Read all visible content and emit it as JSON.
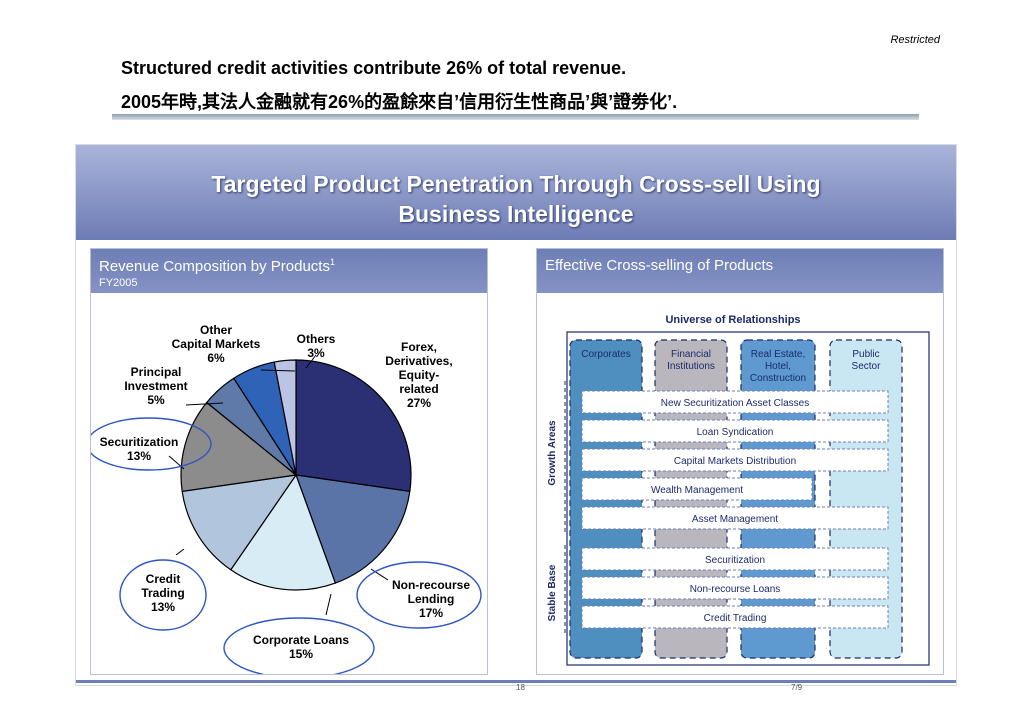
{
  "header": {
    "restricted": "Restricted",
    "line1": "Structured credit activities contribute 26% of total revenue.",
    "line2": "2005年時,其法人金融就有26%的盈餘來自’信用衍生性商品’與’證劵化’."
  },
  "slide": {
    "title_line1": "Targeted Product Penetration Through Cross-sell Using",
    "title_line2": "Business Intelligence",
    "left_panel": {
      "title": "Revenue Composition by Products",
      "footnote_mark": "1",
      "subtitle": "FY2005"
    },
    "right_panel": {
      "title": "Effective Cross-selling of Products"
    },
    "page_numbers": {
      "left": "18",
      "right": "7/9"
    }
  },
  "chart_data": {
    "type": "pie",
    "title": "Revenue Composition by Products",
    "subtitle": "FY2005",
    "slices": [
      {
        "name": "Forex, Derivatives, Equity-related",
        "value": 27,
        "label": "27%",
        "color": "#2b3075"
      },
      {
        "name": "Non-recourse Lending",
        "value": 17,
        "label": "17%",
        "color": "#5a74a8"
      },
      {
        "name": "Corporate Loans",
        "value": 15,
        "label": "15%",
        "color": "#d7ecf4"
      },
      {
        "name": "Credit Trading",
        "value": 13,
        "label": "13%",
        "color": "#b1c6dc"
      },
      {
        "name": "Securitization",
        "value": 13,
        "label": "13%",
        "color": "#8c8c8c"
      },
      {
        "name": "Principal Investment",
        "value": 5,
        "label": "5%",
        "color": "#5f7aa8"
      },
      {
        "name": "Other Capital Markets",
        "value": 6,
        "label": "6%",
        "color": "#2f63b8"
      },
      {
        "name": "Others",
        "value": 3,
        "label": "3%",
        "color": "#bcc4e6"
      }
    ],
    "label_text": {
      "forex": [
        "Forex,",
        "Derivatives,",
        "Equity-",
        "related",
        "27%"
      ],
      "nonrecourse": [
        "Non-recourse",
        "Lending",
        "17%"
      ],
      "corporate": [
        "Corporate Loans",
        "15%"
      ],
      "credit": [
        "Credit",
        "Trading",
        "13%"
      ],
      "securitization": [
        "Securitization",
        "13%"
      ],
      "principal": [
        "Principal",
        "Investment",
        "5%"
      ],
      "othercm": [
        "Other",
        "Capital Markets",
        "6%"
      ],
      "others": [
        "Others",
        "3%"
      ]
    }
  },
  "diagram": {
    "universe": "Universe of Relationships",
    "columns": [
      {
        "label": "Corporates",
        "fill": "#4f8fc0"
      },
      {
        "label": "Financial Institutions",
        "fill": "#b9b7bd"
      },
      {
        "label": "Real Estate, Hotel, Construction",
        "fill": "#5e9ad0"
      },
      {
        "label": "Public Sector",
        "fill": "#c9e6f3"
      }
    ],
    "growth_label": "Growth Areas",
    "stable_label": "Stable Base",
    "growth_rows": [
      "New Securitization Asset Classes",
      "Loan Syndication",
      "Capital Markets Distribution",
      "Wealth Management",
      "Asset Management"
    ],
    "stable_rows": [
      "Securitization",
      "Non-recourse Loans",
      "Credit Trading"
    ]
  }
}
